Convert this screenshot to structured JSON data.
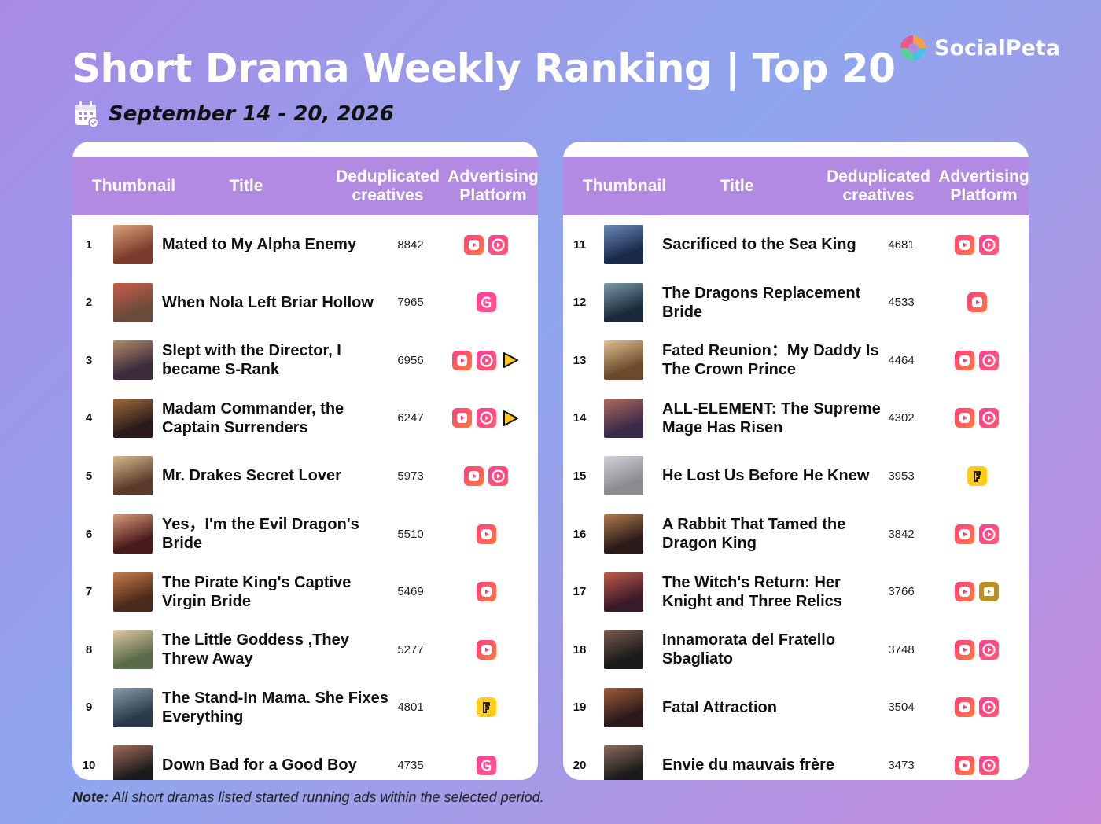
{
  "header": {
    "title": "Short Drama Weekly Ranking | Top 20",
    "date": "September 14 - 20, 2026",
    "brand": "SocialPeta"
  },
  "table": {
    "col_thumbnail": "Thumbnail",
    "col_title": "Title",
    "col_dedup_line1": "Deduplicated",
    "col_dedup_line2": "creatives",
    "col_platform_line1": "Advertising",
    "col_platform_line2": "Platform"
  },
  "left": [
    {
      "rank": "1",
      "title": "Mated to My Alpha Enemy",
      "count": "8842",
      "thumb": [
        "#7b3a2a",
        "#d9a27a"
      ],
      "platforms": [
        "pink",
        "pink-circle"
      ]
    },
    {
      "rank": "2",
      "title": "When Nola Left Briar Hollow",
      "count": "7965",
      "thumb": [
        "#6a4a3a",
        "#c95c4a"
      ],
      "platforms": [
        "pink-g"
      ]
    },
    {
      "rank": "3",
      "title": "Slept with the Director, I became S-Rank",
      "count": "6956",
      "thumb": [
        "#3a2a3a",
        "#b48a6a"
      ],
      "platforms": [
        "pink",
        "pink-circle",
        "yellow-play"
      ]
    },
    {
      "rank": "4",
      "title": "Madam Commander, the Captain Surrenders",
      "count": "6247",
      "thumb": [
        "#2a1a1a",
        "#a06a3a"
      ],
      "platforms": [
        "pink",
        "pink-circle",
        "yellow-play"
      ]
    },
    {
      "rank": "5",
      "title": "Mr. Drakes Secret Lover",
      "count": "5973",
      "thumb": [
        "#5a3a2a",
        "#d8b88a"
      ],
      "platforms": [
        "pink",
        "pink-circle"
      ]
    },
    {
      "rank": "6",
      "title": "Yes，I'm the Evil Dragon's Bride",
      "count": "5510",
      "thumb": [
        "#4a1a1a",
        "#d89a7a"
      ],
      "platforms": [
        "pink"
      ]
    },
    {
      "rank": "7",
      "title": "The Pirate King's Captive Virgin Bride",
      "count": "5469",
      "thumb": [
        "#4a2a1a",
        "#c87a4a"
      ],
      "platforms": [
        "pink"
      ]
    },
    {
      "rank": "8",
      "title": "The Little Goddess ,They Threw Away",
      "count": "5277",
      "thumb": [
        "#5a6a4a",
        "#e0c8a0"
      ],
      "platforms": [
        "pink"
      ]
    },
    {
      "rank": "9",
      "title": "The Stand-In Mama. She Fixes Everything",
      "count": "4801",
      "thumb": [
        "#2a3a4a",
        "#8a9aaa"
      ],
      "platforms": [
        "yellow-f"
      ]
    },
    {
      "rank": "10",
      "title": "Down Bad for a Good Boy",
      "count": "4735",
      "thumb": [
        "#1a1a1a",
        "#a06a5a"
      ],
      "platforms": [
        "pink-g"
      ]
    }
  ],
  "right": [
    {
      "rank": "11",
      "title": "Sacrificed to the Sea King",
      "count": "4681",
      "thumb": [
        "#1a2a4a",
        "#6a8aba"
      ],
      "platforms": [
        "pink",
        "pink-circle"
      ]
    },
    {
      "rank": "12",
      "title": "The Dragons Replacement Bride",
      "count": "4533",
      "thumb": [
        "#1a2a3a",
        "#7a9aaa"
      ],
      "platforms": [
        "pink"
      ]
    },
    {
      "rank": "13",
      "title": "Fated Reunion：My Daddy Is The Crown Prince",
      "count": "4464",
      "thumb": [
        "#6a4a2a",
        "#e0c090"
      ],
      "platforms": [
        "pink",
        "pink-circle"
      ]
    },
    {
      "rank": "14",
      "title": "ALL-ELEMENT: The Supreme Mage Has Risen",
      "count": "4302",
      "thumb": [
        "#3a2a4a",
        "#b06a5a"
      ],
      "platforms": [
        "pink",
        "pink-circle"
      ]
    },
    {
      "rank": "15",
      "title": "He Lost Us Before He Knew",
      "count": "3953",
      "thumb": [
        "#8a8a90",
        "#d0d0d8"
      ],
      "platforms": [
        "yellow-f"
      ]
    },
    {
      "rank": "16",
      "title": "A Rabbit That Tamed the Dragon King",
      "count": "3842",
      "thumb": [
        "#2a1a1a",
        "#b07a4a"
      ],
      "platforms": [
        "pink",
        "pink-circle"
      ]
    },
    {
      "rank": "17",
      "title": "The Witch's Return: Her Knight and Three Relics",
      "count": "3766",
      "thumb": [
        "#3a1a2a",
        "#c05a4a"
      ],
      "platforms": [
        "pink",
        "gold-box"
      ]
    },
    {
      "rank": "18",
      "title": "Innamorata del Fratello Sbagliato",
      "count": "3748",
      "thumb": [
        "#1a1a1a",
        "#7a5a4a"
      ],
      "platforms": [
        "pink",
        "pink-circle"
      ]
    },
    {
      "rank": "19",
      "title": "Fatal Attraction",
      "count": "3504",
      "thumb": [
        "#2a1a1a",
        "#a05a3a"
      ],
      "platforms": [
        "pink",
        "pink-circle"
      ]
    },
    {
      "rank": "20",
      "title": "Envie du mauvais frère",
      "count": "3473",
      "thumb": [
        "#1a1a1a",
        "#8a6a5a"
      ],
      "platforms": [
        "pink",
        "pink-circle"
      ]
    }
  ],
  "note": {
    "label": "Note:",
    "text": "All short dramas listed started running ads within the selected period."
  }
}
